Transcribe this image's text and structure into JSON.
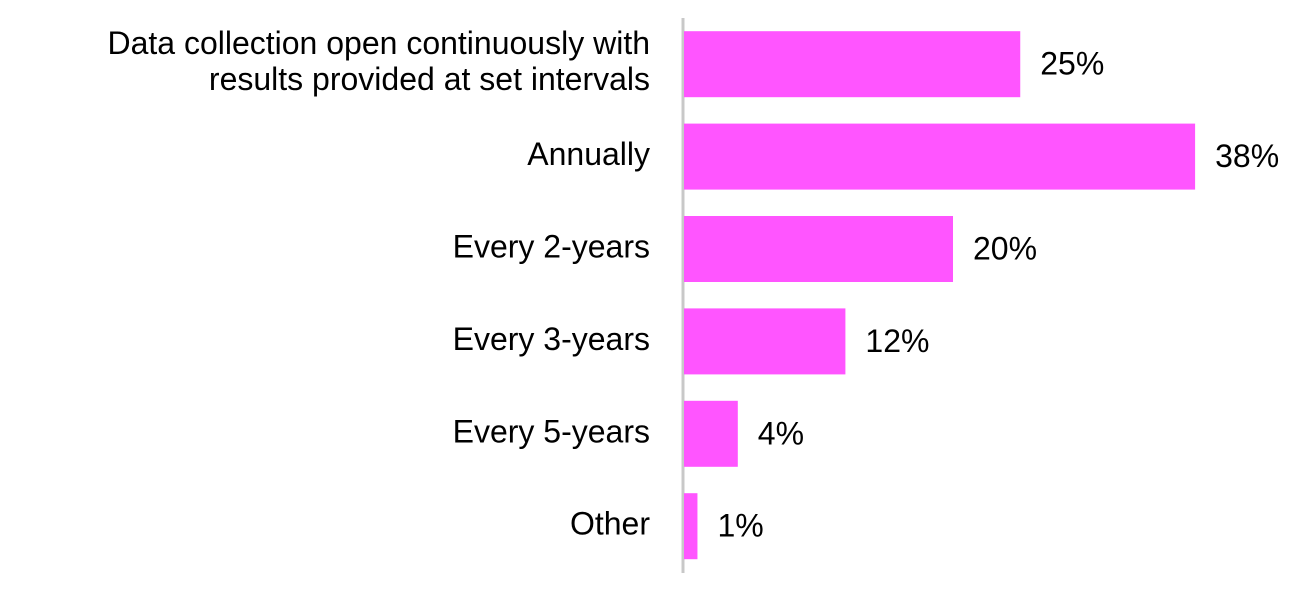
{
  "chart_data": {
    "type": "bar",
    "orientation": "horizontal",
    "categories": [
      "Data collection open continuously with results provided at set intervals",
      "Annually",
      "Every 2-years",
      "Every 3-years",
      "Every 5-years",
      "Other"
    ],
    "values": [
      25,
      38,
      20,
      12,
      4,
      1
    ],
    "value_labels": [
      "25%",
      "38%",
      "20%",
      "12%",
      "4%",
      "1%"
    ],
    "color": "#ff55ff"
  }
}
